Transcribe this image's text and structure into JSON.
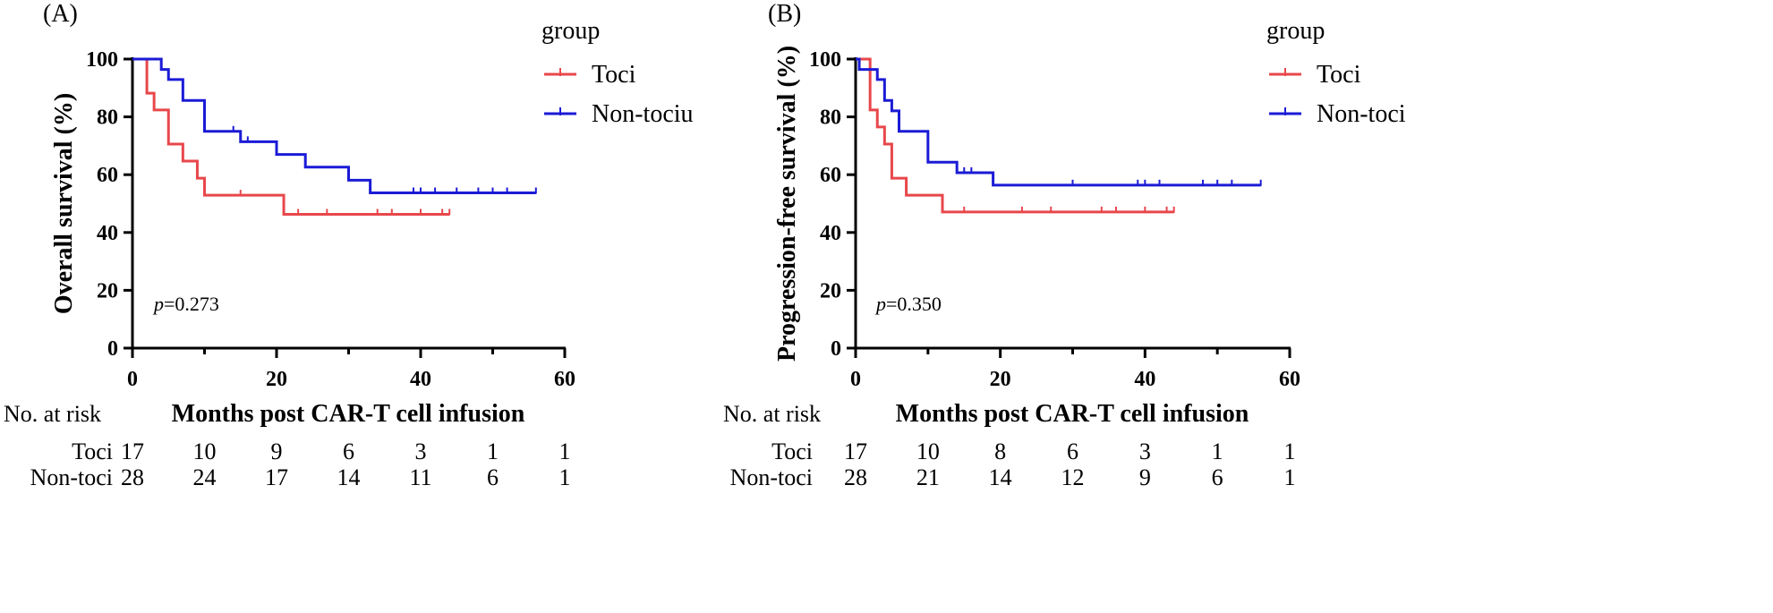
{
  "chart_data": [
    {
      "type": "line",
      "panel_label": "(A)",
      "ylabel": "Overall survival (%)",
      "xlabel": "Months post CAR-T cell infusion",
      "xlim": [
        0,
        60
      ],
      "ylim": [
        0,
        100
      ],
      "x_ticks": [
        "0",
        "20",
        "40",
        "60"
      ],
      "y_ticks": [
        "0",
        "20",
        "40",
        "60",
        "80",
        "100"
      ],
      "legend_title": "group",
      "legend_labels": [
        "Toci",
        "Non-tociu"
      ],
      "p_prefix": "p",
      "p_value": "=0.273",
      "series": [
        {
          "name": "Toci",
          "color": "#e8474b",
          "steps": [
            [
              0,
              100
            ],
            [
              2,
              88.2
            ],
            [
              3,
              82.4
            ],
            [
              5,
              70.6
            ],
            [
              7,
              64.7
            ],
            [
              9,
              58.8
            ],
            [
              10,
              52.9
            ],
            [
              21,
              46.3
            ],
            [
              44,
              46.3
            ]
          ],
          "censored": [
            15,
            23,
            27,
            34,
            36,
            40,
            43,
            44
          ]
        },
        {
          "name": "Non-tociu",
          "color": "#1b1bd6",
          "steps": [
            [
              0,
              100
            ],
            [
              4,
              96.4
            ],
            [
              5,
              92.9
            ],
            [
              7,
              85.7
            ],
            [
              10,
              75
            ],
            [
              15,
              71.4
            ],
            [
              20,
              67
            ],
            [
              24,
              62.6
            ],
            [
              30,
              58.1
            ],
            [
              33,
              53.7
            ],
            [
              56,
              53.7
            ]
          ],
          "censored": [
            14,
            16,
            39,
            40,
            42,
            45,
            48,
            50,
            52,
            56
          ]
        }
      ],
      "risk_table": {
        "header": "No. at risk",
        "rows": [
          {
            "label": "Toci",
            "counts": [
              "17",
              "10",
              "9",
              "6",
              "3",
              "1",
              "1"
            ]
          },
          {
            "label": "Non-toci",
            "counts": [
              "28",
              "24",
              "17",
              "14",
              "11",
              "6",
              "1"
            ]
          }
        ]
      }
    },
    {
      "type": "line",
      "panel_label": "(B)",
      "ylabel": "Progression-free survival (%)",
      "xlabel": "Months post CAR-T cell infusion",
      "xlim": [
        0,
        60
      ],
      "ylim": [
        0,
        100
      ],
      "x_ticks": [
        "0",
        "20",
        "40",
        "60"
      ],
      "y_ticks": [
        "0",
        "20",
        "40",
        "60",
        "80",
        "100"
      ],
      "legend_title": "group",
      "legend_labels": [
        "Toci",
        "Non-toci"
      ],
      "p_prefix": "p",
      "p_value": "=0.350",
      "series": [
        {
          "name": "Toci",
          "color": "#e8474b",
          "steps": [
            [
              0,
              100
            ],
            [
              2,
              82.4
            ],
            [
              3,
              76.5
            ],
            [
              4,
              70.6
            ],
            [
              5,
              58.8
            ],
            [
              7,
              52.9
            ],
            [
              12,
              47.1
            ],
            [
              44,
              47.1
            ]
          ],
          "censored": [
            15,
            23,
            27,
            34,
            36,
            40,
            43,
            44
          ]
        },
        {
          "name": "Non-toci",
          "color": "#1b1bd6",
          "steps": [
            [
              0,
              100
            ],
            [
              0.5,
              96.4
            ],
            [
              3,
              92.9
            ],
            [
              4,
              85.7
            ],
            [
              5,
              82.1
            ],
            [
              6,
              75
            ],
            [
              10,
              64.3
            ],
            [
              14,
              60.7
            ],
            [
              19,
              56.4
            ],
            [
              56,
              56.4
            ]
          ],
          "censored": [
            15,
            16,
            30,
            39,
            40,
            42,
            48,
            50,
            52,
            56
          ]
        }
      ],
      "risk_table": {
        "header": "No. at risk",
        "rows": [
          {
            "label": "Toci",
            "counts": [
              "17",
              "10",
              "8",
              "6",
              "3",
              "1",
              "1"
            ]
          },
          {
            "label": "Non-toci",
            "counts": [
              "28",
              "21",
              "14",
              "12",
              "9",
              "6",
              "1"
            ]
          }
        ]
      }
    }
  ]
}
